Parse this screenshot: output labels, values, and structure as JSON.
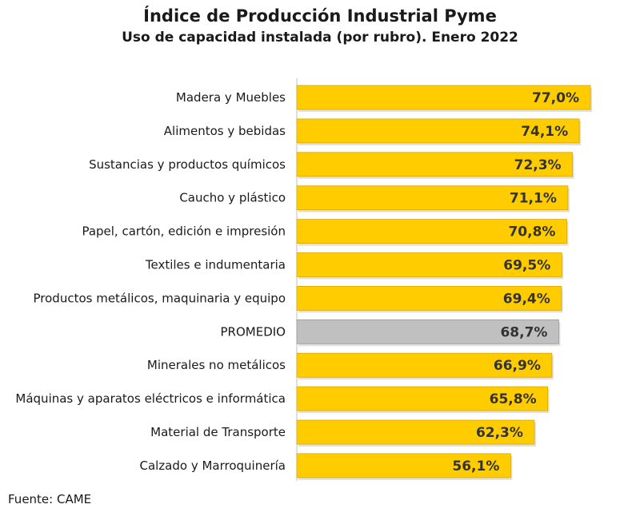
{
  "title": "Índice de Producción Industrial Pyme",
  "subtitle": "Uso de capacidad instalada (por rubro). Enero 2022",
  "source": "Fuente: CAME",
  "colors": {
    "bar": "#ffcc00",
    "bar_edge": "#d9a800",
    "average_bar": "#c0c0c0",
    "average_edge": "#999999",
    "axis": "#bfbfbf",
    "label": "#1a1a1a",
    "value_label": "#333333"
  },
  "chart_data": {
    "type": "bar",
    "orientation": "horizontal",
    "title": "Índice de Producción Industrial Pyme",
    "subtitle": "Uso de capacidad instalada (por rubro). Enero 2022",
    "categories": [
      "Madera y Muebles",
      "Alimentos y bebidas",
      "Sustancias y productos químicos",
      "Caucho y plástico",
      "Papel, cartón, edición e impresión",
      "Textiles e indumentaria",
      "Productos metálicos, maquinaria y equipo",
      "PROMEDIO",
      "Minerales no metálicos",
      "Máquinas y aparatos eléctricos e informática",
      "Material de Transporte",
      "Calzado y Marroquinería"
    ],
    "values": [
      77.0,
      74.1,
      72.3,
      71.1,
      70.8,
      69.5,
      69.4,
      68.7,
      66.9,
      65.8,
      62.3,
      56.1
    ],
    "value_labels": [
      "77,0%",
      "74,1%",
      "72,3%",
      "71,1%",
      "70,8%",
      "69,5%",
      "69,4%",
      "68,7%",
      "66,9%",
      "65,8%",
      "62,3%",
      "56,1%"
    ],
    "highlight": "PROMEDIO",
    "xlim": [
      0,
      77.0
    ],
    "grid": false,
    "legend": "none"
  }
}
